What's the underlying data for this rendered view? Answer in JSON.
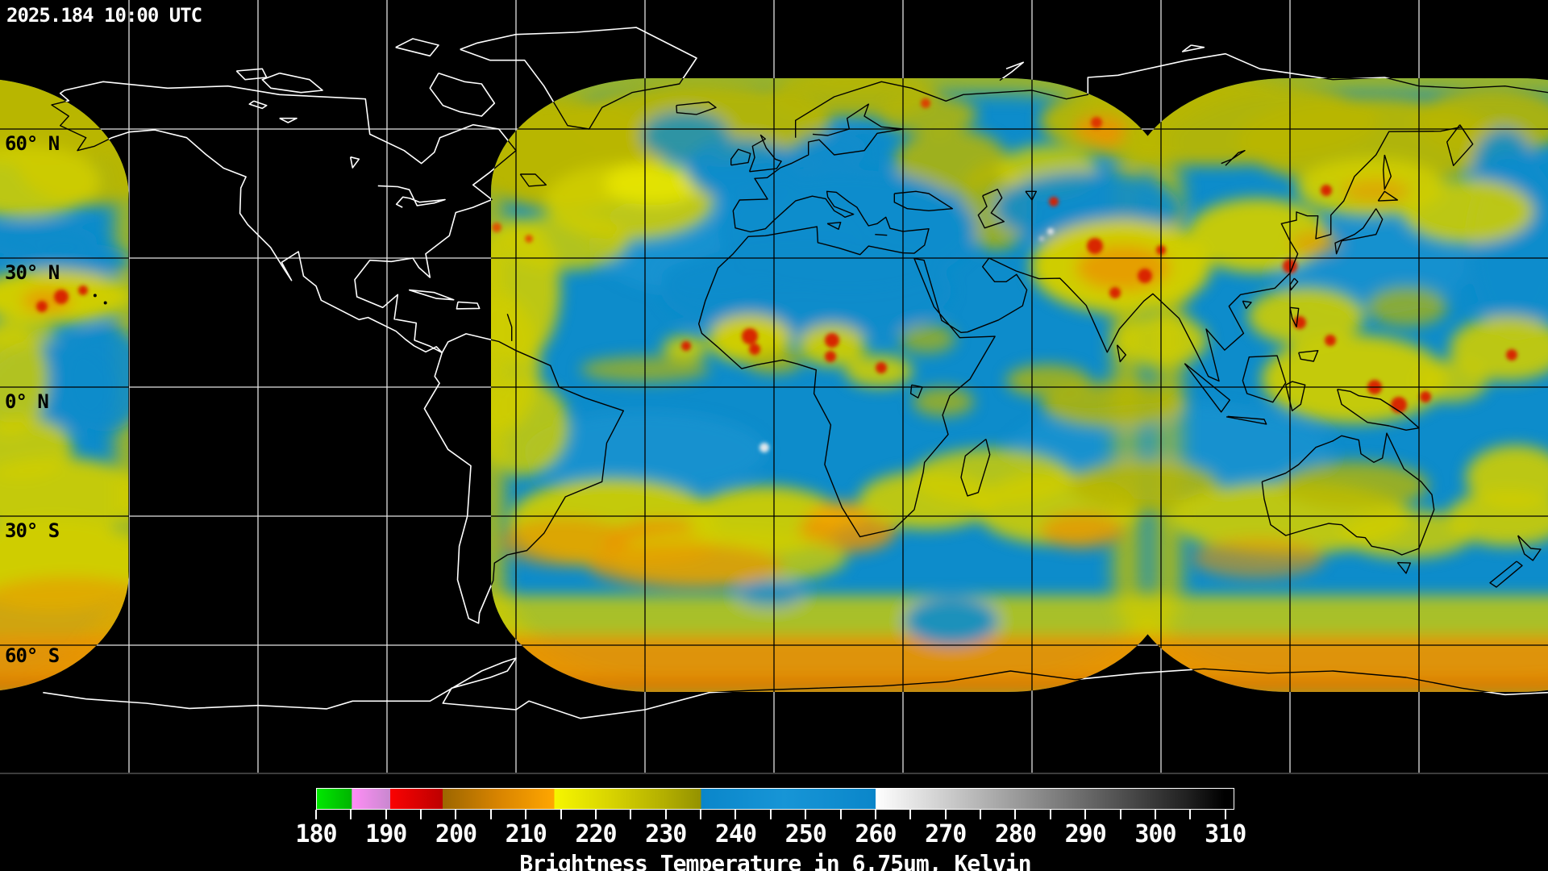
{
  "header": {
    "timestamp": "2025.184 10:00 UTC"
  },
  "map": {
    "lat_labels": [
      "60° N",
      "30° N",
      "0° N",
      "30° S",
      "60° S"
    ],
    "grid_interval_degrees": 30,
    "background_color": "#000000",
    "data_base_color": "#0d8ccb",
    "cloud_cold_color": "#cfcd00",
    "cloud_very_cold_color": "#ea9400"
  },
  "colorbar": {
    "caption": "Brightness Temperature in 6.75um, Kelvin",
    "tick_labels": [
      "180",
      "190",
      "200",
      "210",
      "220",
      "230",
      "240",
      "250",
      "260",
      "270",
      "280",
      "290",
      "300",
      "310"
    ],
    "range_min": 180,
    "range_max": 310,
    "tick_step": 5,
    "segments": [
      {
        "from": 180,
        "to": 185,
        "color": "#00dd00"
      },
      {
        "from": 185,
        "to": 190,
        "color": "#dd8edd"
      },
      {
        "from": 190,
        "to": 198,
        "color": "#e00000"
      },
      {
        "from": 198,
        "to": 214,
        "color": "#d88400"
      },
      {
        "from": 214,
        "to": 235,
        "color": "#cccc00"
      },
      {
        "from": 235,
        "to": 260,
        "color": "#0d8ccb"
      },
      {
        "from": 260,
        "to": 310,
        "color": "grayscale white to black"
      }
    ]
  }
}
